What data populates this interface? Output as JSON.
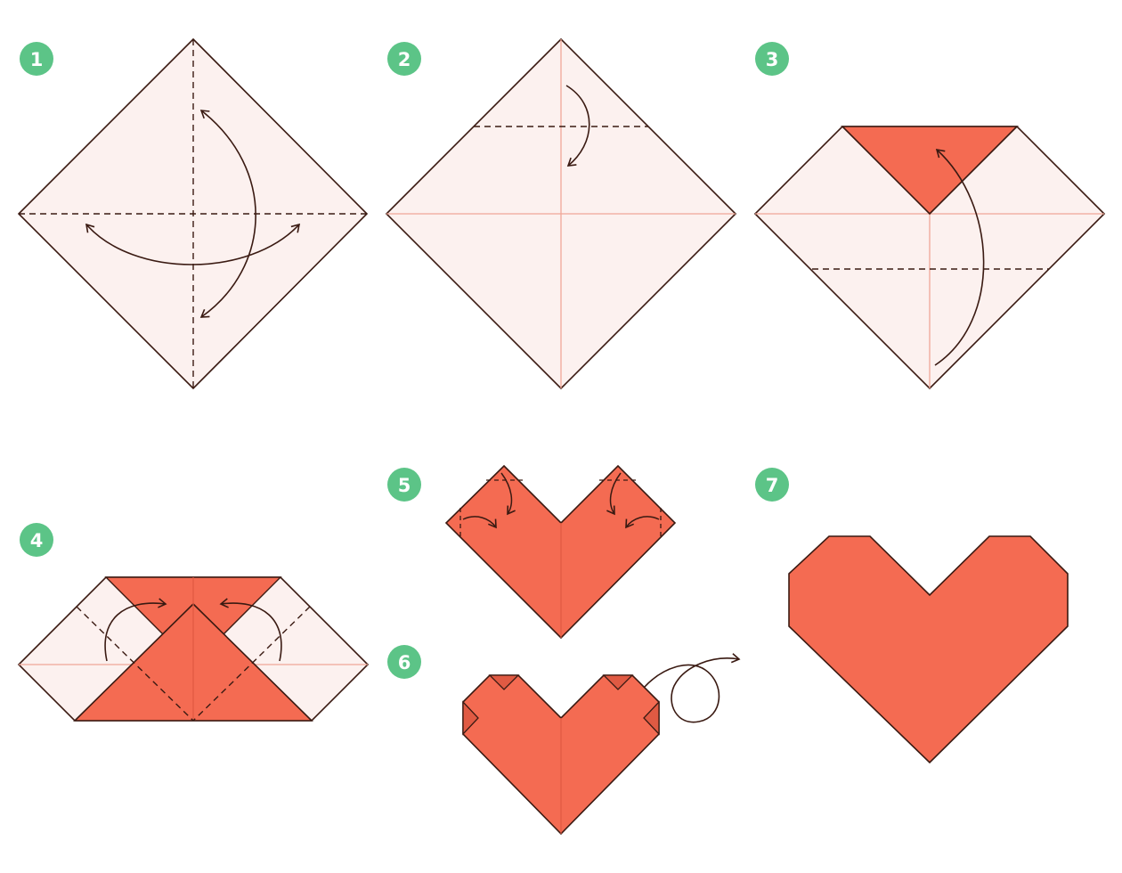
{
  "colors": {
    "paper": "#fcf1ef",
    "folded": "#f46b52",
    "folded_dark": "#e05a43",
    "outline": "#3a1a12",
    "crease": "#f0a797",
    "badge": "#5cc487",
    "badge_text": "#ffffff"
  },
  "steps": [
    {
      "number": "1"
    },
    {
      "number": "2"
    },
    {
      "number": "3"
    },
    {
      "number": "4"
    },
    {
      "number": "5"
    },
    {
      "number": "6"
    },
    {
      "number": "7"
    }
  ]
}
